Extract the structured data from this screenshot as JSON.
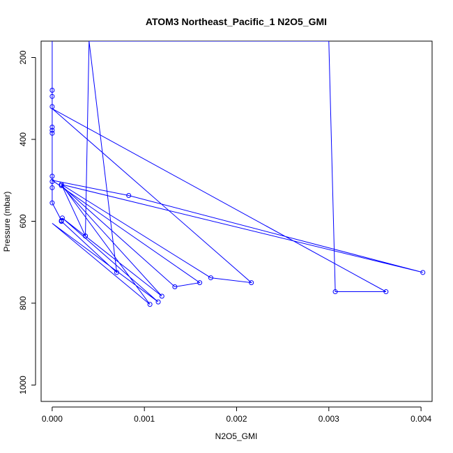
{
  "chart_data": {
    "type": "line",
    "title": "ATOM3 Northeast_Pacific_1 N2O5_GMI",
    "xlabel": "N2O5_GMI",
    "ylabel": "Pressure (mbar)",
    "xlim": [
      -0.00012,
      0.00412
    ],
    "ylim": [
      1040,
      160
    ],
    "y_reversed": true,
    "x_ticks": [
      0.0,
      0.001,
      0.002,
      0.003,
      0.004
    ],
    "x_tick_labels": [
      "0.000",
      "0.001",
      "0.002",
      "0.003",
      "0.004"
    ],
    "y_ticks": [
      200,
      400,
      600,
      800,
      1000
    ],
    "y_tick_labels": [
      "200",
      "400",
      "600",
      "800",
      "1000"
    ],
    "grid": false,
    "legend": "none",
    "color": "#0000ff",
    "series": [
      {
        "marker": "open-circle",
        "points": [
          {
            "x": 0.0,
            "y": 160,
            "marker": false
          },
          {
            "x": 0.0,
            "y": 280
          },
          {
            "x": 0.0,
            "y": 295
          },
          {
            "x": 0.0,
            "y": 320
          },
          {
            "x": 0.0,
            "y": 370
          },
          {
            "x": 0.0,
            "y": 378
          },
          {
            "x": 0.0,
            "y": 385
          },
          {
            "x": 0.0,
            "y": 490
          },
          {
            "x": 0.0,
            "y": 503
          },
          {
            "x": 0.0,
            "y": 518
          },
          {
            "x": 0.0,
            "y": 555
          },
          {
            "x": 0.0001,
            "y": 598
          },
          {
            "x": 0.0001,
            "y": 600
          },
          {
            "x": 0.0001,
            "y": 600
          },
          {
            "x": 0.0007,
            "y": 725
          },
          {
            "x": 0.0004,
            "y": 160,
            "marker": false
          },
          {
            "x": 0.003,
            "y": 160,
            "marker": false
          },
          {
            "x": 0.00307,
            "y": 772
          },
          {
            "x": 0.00362,
            "y": 772
          },
          {
            "x": 0.0,
            "y": 325,
            "marker": false
          },
          {
            "x": 0.00216,
            "y": 750
          },
          {
            "x": 0.00172,
            "y": 738
          },
          {
            "x": 0.0001,
            "y": 510,
            "marker": false
          },
          {
            "x": 0.00402,
            "y": 725
          },
          {
            "x": 0.00083,
            "y": 537
          },
          {
            "x": 0.0,
            "y": 500,
            "marker": false
          },
          {
            "x": 0.0016,
            "y": 750
          },
          {
            "x": 0.00133,
            "y": 760
          },
          {
            "x": 0.0001,
            "y": 513
          },
          {
            "x": 0.00119,
            "y": 783
          },
          {
            "x": 0.00011,
            "y": 592
          },
          {
            "x": 0.00115,
            "y": 797
          },
          {
            "x": 0.0,
            "y": 605,
            "marker": false
          },
          {
            "x": 0.00106,
            "y": 803
          },
          {
            "x": 0.0001,
            "y": 510
          },
          {
            "x": 0.00036,
            "y": 636
          },
          {
            "x": 0.00036,
            "y": 636
          },
          {
            "x": 0.0004,
            "y": 160,
            "marker": false
          }
        ]
      }
    ]
  }
}
